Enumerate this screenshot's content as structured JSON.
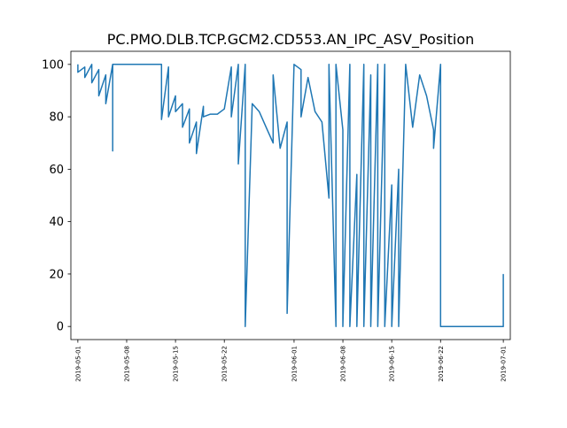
{
  "chart_data": {
    "type": "line",
    "title": "PC.PMO.DLB.TCP.GCM2.CD553.AN_IPC_ASV_Position",
    "xlabel": "",
    "ylabel": "",
    "xlim": [
      "2019-04-30",
      "2019-07-02"
    ],
    "ylim": [
      -5,
      105
    ],
    "grid": false,
    "line_color": "#1f77b4",
    "y_ticks": [
      0,
      20,
      40,
      60,
      80,
      100
    ],
    "x_ticks": [
      "2019-05-01",
      "2019-05-08",
      "2019-05-15",
      "2019-05-22",
      "2019-06-01",
      "2019-06-08",
      "2019-06-15",
      "2019-06-22",
      "2019-07-01"
    ],
    "series": [
      {
        "x": [
          "2019-05-01",
          "2019-05-01",
          "2019-05-02",
          "2019-05-02",
          "2019-05-03",
          "2019-05-03",
          "2019-05-04",
          "2019-05-04",
          "2019-05-05",
          "2019-05-05",
          "2019-05-06",
          "2019-05-06",
          "2019-05-06",
          "2019-05-07",
          "2019-05-07",
          "2019-05-08",
          "2019-05-09",
          "2019-05-10",
          "2019-05-11",
          "2019-05-12",
          "2019-05-13",
          "2019-05-13",
          "2019-05-14",
          "2019-05-14",
          "2019-05-15",
          "2019-05-15",
          "2019-05-16",
          "2019-05-16",
          "2019-05-17",
          "2019-05-17",
          "2019-05-18",
          "2019-05-18",
          "2019-05-19",
          "2019-05-19",
          "2019-05-20",
          "2019-05-21",
          "2019-05-22",
          "2019-05-23",
          "2019-05-23",
          "2019-05-24",
          "2019-05-24",
          "2019-05-25",
          "2019-05-25",
          "2019-05-26",
          "2019-05-27",
          "2019-05-28",
          "2019-05-29",
          "2019-05-29",
          "2019-05-30",
          "2019-05-31",
          "2019-05-31",
          "2019-06-01",
          "2019-06-02",
          "2019-06-02",
          "2019-06-03",
          "2019-06-04",
          "2019-06-05",
          "2019-06-06",
          "2019-06-06",
          "2019-06-07",
          "2019-06-07",
          "2019-06-08",
          "2019-06-08",
          "2019-06-09",
          "2019-06-09",
          "2019-06-10",
          "2019-06-10",
          "2019-06-11",
          "2019-06-11",
          "2019-06-12",
          "2019-06-12",
          "2019-06-13",
          "2019-06-13",
          "2019-06-14",
          "2019-06-14",
          "2019-06-15",
          "2019-06-15",
          "2019-06-16",
          "2019-06-16",
          "2019-06-17",
          "2019-06-18",
          "2019-06-19",
          "2019-06-20",
          "2019-06-21",
          "2019-06-21",
          "2019-06-22",
          "2019-06-22",
          "2019-06-23",
          "2019-06-25",
          "2019-06-27",
          "2019-06-29",
          "2019-07-01",
          "2019-07-01"
        ],
        "y": [
          100,
          97,
          99,
          95,
          100,
          93,
          98,
          88,
          96,
          85,
          100,
          67,
          100,
          100,
          100,
          100,
          100,
          100,
          100,
          100,
          100,
          79,
          99,
          80,
          88,
          82,
          85,
          76,
          83,
          70,
          78,
          66,
          84,
          80,
          81,
          81,
          83,
          99,
          80,
          100,
          62,
          100,
          0,
          85,
          82,
          76,
          70,
          96,
          68,
          78,
          5,
          100,
          98,
          80,
          95,
          82,
          78,
          49,
          100,
          0,
          100,
          75,
          0,
          100,
          0,
          58,
          0,
          100,
          0,
          96,
          0,
          100,
          0,
          100,
          0,
          54,
          0,
          60,
          0,
          100,
          76,
          96,
          88,
          75,
          68,
          100,
          0,
          0,
          0,
          0,
          0,
          0,
          20
        ]
      }
    ]
  }
}
